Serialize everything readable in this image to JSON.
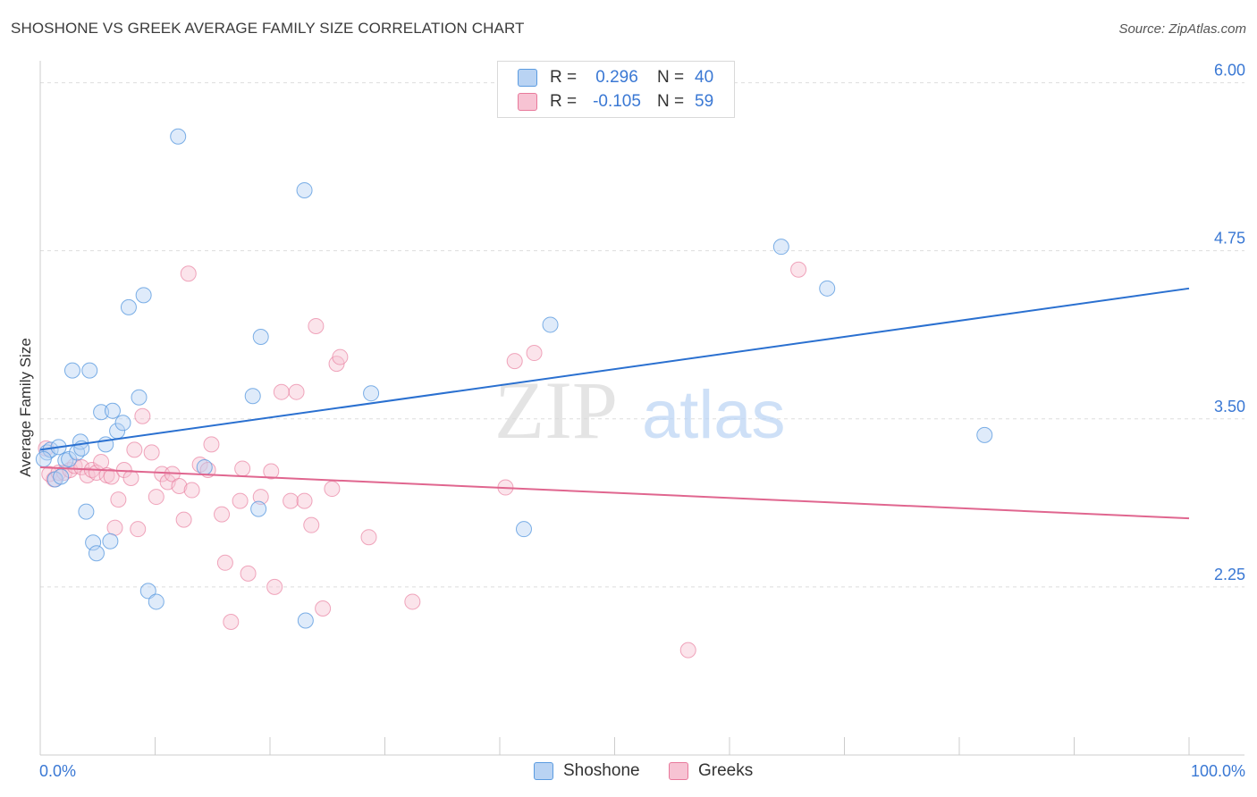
{
  "title": "SHOSHONE VS GREEK AVERAGE FAMILY SIZE CORRELATION CHART",
  "source": "Source: ZipAtlas.com",
  "watermark": {
    "zip": "ZIP",
    "atlas": "atlas"
  },
  "legend": {
    "rows": [
      {
        "r_label": "R =",
        "r_value": "0.296",
        "n_label": "N =",
        "n_value": "40"
      },
      {
        "r_label": "R =",
        "r_value": "-0.105",
        "n_label": "N =",
        "n_value": "59"
      }
    ]
  },
  "bottom_legend": {
    "shoshone": "Shoshone",
    "greeks": "Greeks"
  },
  "chart_data": {
    "type": "scatter",
    "title": "SHOSHONE VS GREEK AVERAGE FAMILY SIZE CORRELATION CHART",
    "xlabel": "",
    "ylabel": "Average Family Size",
    "xlim": [
      0,
      100
    ],
    "ylim": [
      1.0,
      6.15
    ],
    "x_tick_labels": [
      "0.0%",
      "100.0%"
    ],
    "y_ticks": [
      2.25,
      3.5,
      4.75,
      6.0
    ],
    "y_tick_labels": [
      "2.25",
      "3.50",
      "4.75",
      "6.00"
    ],
    "grid": true,
    "colors": {
      "shoshone": "#5b9be0",
      "shoshone_fill": "#b9d3f3",
      "greeks": "#e8799b",
      "greeks_fill": "#f7c3d3",
      "shoshone_line": "#2a70d0",
      "greeks_line": "#e0668f",
      "axis_text": "#3a78d4"
    },
    "series": [
      {
        "name": "Shoshone",
        "trend": {
          "x": [
            0,
            100
          ],
          "y": [
            3.27,
            4.47
          ]
        },
        "points": [
          [
            0.6,
            3.25
          ],
          [
            0.9,
            3.27
          ],
          [
            1.3,
            3.05
          ],
          [
            1.6,
            3.29
          ],
          [
            1.8,
            3.07
          ],
          [
            2.2,
            3.19
          ],
          [
            2.5,
            3.2
          ],
          [
            2.8,
            3.86
          ],
          [
            3.2,
            3.25
          ],
          [
            3.5,
            3.33
          ],
          [
            3.6,
            3.28
          ],
          [
            4.0,
            2.81
          ],
          [
            4.3,
            3.86
          ],
          [
            4.6,
            2.58
          ],
          [
            4.9,
            2.5
          ],
          [
            5.3,
            3.55
          ],
          [
            5.7,
            3.31
          ],
          [
            6.1,
            2.59
          ],
          [
            6.3,
            3.56
          ],
          [
            6.7,
            3.41
          ],
          [
            7.2,
            3.47
          ],
          [
            7.7,
            4.33
          ],
          [
            8.6,
            3.66
          ],
          [
            9.0,
            4.42
          ],
          [
            9.4,
            2.22
          ],
          [
            10.1,
            2.14
          ],
          [
            12.0,
            5.6
          ],
          [
            14.3,
            3.14
          ],
          [
            18.5,
            3.67
          ],
          [
            19.0,
            2.83
          ],
          [
            19.2,
            4.11
          ],
          [
            23.0,
            5.2
          ],
          [
            23.1,
            2.0
          ],
          [
            28.8,
            3.69
          ],
          [
            42.1,
            2.68
          ],
          [
            44.4,
            4.2
          ],
          [
            64.5,
            4.78
          ],
          [
            68.5,
            4.47
          ],
          [
            82.2,
            3.38
          ],
          [
            0.3,
            3.2
          ]
        ]
      },
      {
        "name": "Greeks",
        "trend": {
          "x": [
            0,
            100
          ],
          "y": [
            3.14,
            2.76
          ]
        },
        "points": [
          [
            0.5,
            3.28
          ],
          [
            0.8,
            3.09
          ],
          [
            1.2,
            3.05
          ],
          [
            1.6,
            3.1
          ],
          [
            2.1,
            3.1
          ],
          [
            2.6,
            3.12
          ],
          [
            3.0,
            3.15
          ],
          [
            3.6,
            3.14
          ],
          [
            4.1,
            3.08
          ],
          [
            4.5,
            3.12
          ],
          [
            4.9,
            3.1
          ],
          [
            5.3,
            3.18
          ],
          [
            5.8,
            3.08
          ],
          [
            6.2,
            3.07
          ],
          [
            6.5,
            2.69
          ],
          [
            6.8,
            2.9
          ],
          [
            7.3,
            3.12
          ],
          [
            7.9,
            3.06
          ],
          [
            8.2,
            3.27
          ],
          [
            8.5,
            2.68
          ],
          [
            8.9,
            3.52
          ],
          [
            9.7,
            3.25
          ],
          [
            10.1,
            2.92
          ],
          [
            10.6,
            3.09
          ],
          [
            11.1,
            3.03
          ],
          [
            11.5,
            3.09
          ],
          [
            12.1,
            3.0
          ],
          [
            12.5,
            2.75
          ],
          [
            12.9,
            4.58
          ],
          [
            13.2,
            2.97
          ],
          [
            13.9,
            3.16
          ],
          [
            14.6,
            3.12
          ],
          [
            14.9,
            3.31
          ],
          [
            15.8,
            2.79
          ],
          [
            16.1,
            2.43
          ],
          [
            16.6,
            1.99
          ],
          [
            17.4,
            2.89
          ],
          [
            17.6,
            3.13
          ],
          [
            18.1,
            2.35
          ],
          [
            19.2,
            2.92
          ],
          [
            20.1,
            3.11
          ],
          [
            20.4,
            2.25
          ],
          [
            21.0,
            3.7
          ],
          [
            21.8,
            2.89
          ],
          [
            22.3,
            3.7
          ],
          [
            23.0,
            2.89
          ],
          [
            23.6,
            2.71
          ],
          [
            24.0,
            4.19
          ],
          [
            24.6,
            2.09
          ],
          [
            25.4,
            2.98
          ],
          [
            25.8,
            3.91
          ],
          [
            26.1,
            3.96
          ],
          [
            28.6,
            2.62
          ],
          [
            32.4,
            2.14
          ],
          [
            40.5,
            2.99
          ],
          [
            41.3,
            3.93
          ],
          [
            43.0,
            3.99
          ],
          [
            56.4,
            1.78
          ],
          [
            66.0,
            4.61
          ]
        ]
      }
    ]
  }
}
